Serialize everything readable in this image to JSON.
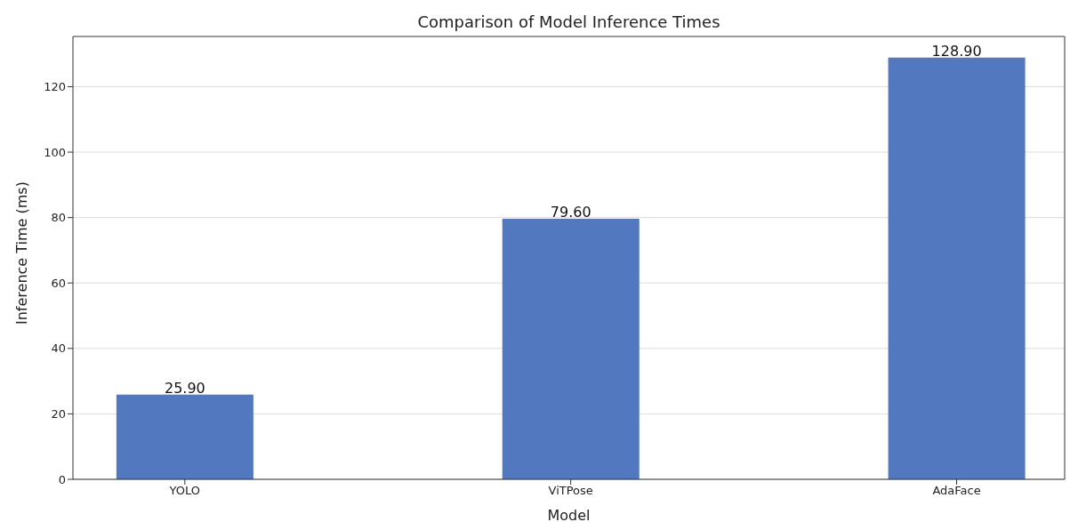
{
  "chart_data": {
    "type": "bar",
    "title": "Comparison of Model Inference Times",
    "xlabel": "Model",
    "ylabel": "Inference Time (ms)",
    "categories": [
      "YOLO",
      "ViTPose",
      "AdaFace"
    ],
    "values": [
      25.9,
      79.6,
      128.9
    ],
    "value_labels": [
      "25.90",
      "79.60",
      "128.90"
    ],
    "color": "#5279c0",
    "ylim": [
      0,
      135.35
    ],
    "yticks": [
      0,
      20,
      40,
      60,
      80,
      100,
      120
    ],
    "grid": "y"
  }
}
